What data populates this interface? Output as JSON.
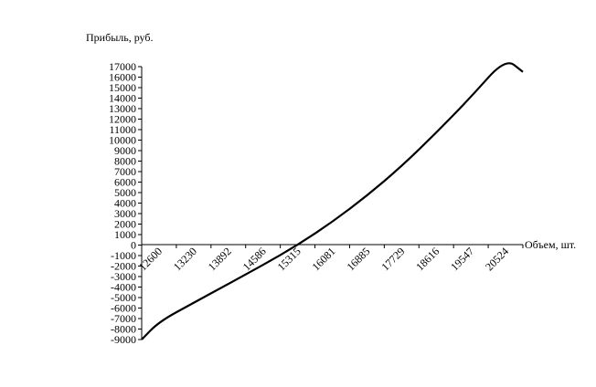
{
  "chart_data": {
    "type": "line",
    "title": "",
    "ylabel": "Прибыль, руб.",
    "xlabel": "Объем, шт.",
    "ylim": [
      -9000,
      17000
    ],
    "y_ticks": [
      "17000",
      "16000",
      "15000",
      "14000",
      "13000",
      "12000",
      "11000",
      "10000",
      "9000",
      "8000",
      "7000",
      "6000",
      "5000",
      "4000",
      "3000",
      "2000",
      "1000",
      "0",
      "-1000",
      "-2000",
      "-3000",
      "-4000",
      "-5000",
      "-6000",
      "-7000",
      "-8000",
      "-9000"
    ],
    "x_tick_labels": [
      "12600",
      "13230",
      "13892",
      "14586",
      "15315",
      "16081",
      "16885",
      "17729",
      "18616",
      "19547",
      "20524"
    ],
    "grid": false,
    "legend": "none",
    "series": [
      {
        "x": [
          12000,
          12600,
          13230,
          13892,
          14586,
          15315,
          16081,
          16885,
          17729,
          18616,
          19547,
          20524,
          21000
        ],
        "values": [
          -9000,
          -7300,
          -5500,
          -3700,
          -1900,
          0,
          2200,
          4700,
          7500,
          10700,
          14100,
          17800,
          16500
        ]
      }
    ],
    "line_color": "#000000"
  }
}
